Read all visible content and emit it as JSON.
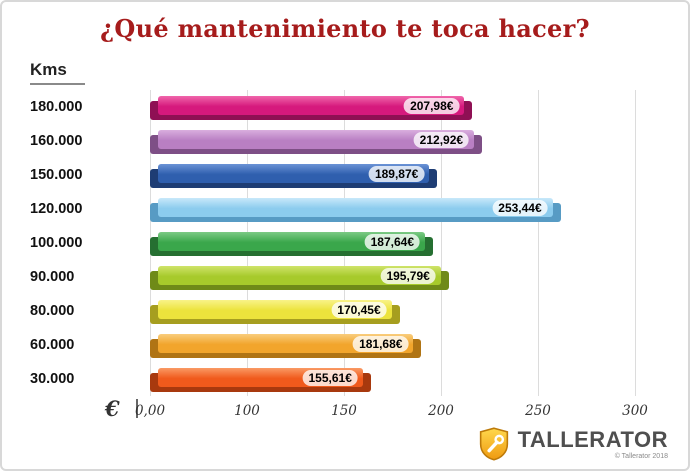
{
  "title": "¿Qué mantenimiento te toca hacer?",
  "y_axis_title": "Kms",
  "x_axis": {
    "symbol": "€"
  },
  "footer": {
    "brand": "TALLERATOR",
    "copyright": "© Tallerator 2018"
  },
  "chart_data": {
    "type": "bar",
    "orientation": "horizontal",
    "title": "¿Qué mantenimiento te toca hacer?",
    "xlabel": "€",
    "ylabel": "Kms",
    "grid": true,
    "legend": false,
    "xlim": [
      0,
      300
    ],
    "categories": [
      "180.000",
      "160.000",
      "150.000",
      "120.000",
      "100.000",
      "90.000",
      "80.000",
      "60.000",
      "30.000"
    ],
    "values": [
      207.98,
      212.92,
      189.87,
      253.44,
      187.64,
      195.79,
      170.45,
      181.68,
      155.61
    ],
    "value_labels": [
      "207,98€",
      "212,92€",
      "189,87€",
      "253,44€",
      "187,64€",
      "195,79€",
      "170,45€",
      "181,68€",
      "155,61€"
    ],
    "x_tick_values": [
      0,
      100,
      150,
      200,
      250,
      300
    ],
    "x_tick_labels": [
      "0,00",
      "100",
      "150",
      "200",
      "250",
      "300"
    ],
    "colors": [
      {
        "light": "#f066ab",
        "base": "#d6197d",
        "dark": "#8f1054"
      },
      {
        "light": "#d9aede",
        "base": "#b97fc3",
        "dark": "#7e4f86"
      },
      {
        "light": "#6b93d6",
        "base": "#2f5fae",
        "dark": "#1e3d74"
      },
      {
        "light": "#c8e8fa",
        "base": "#8cccee",
        "dark": "#579bc4"
      },
      {
        "light": "#7cca85",
        "base": "#3aa74b",
        "dark": "#256f31"
      },
      {
        "light": "#cfe36a",
        "base": "#a7ca2b",
        "dark": "#6f8a18"
      },
      {
        "light": "#f9f388",
        "base": "#ece33c",
        "dark": "#a69e1f"
      },
      {
        "light": "#f9cd7d",
        "base": "#f2a52c",
        "dark": "#b07414"
      },
      {
        "light": "#fa9a64",
        "base": "#f05a1c",
        "dark": "#a8390e"
      }
    ],
    "title_color": "#a61c1c"
  }
}
